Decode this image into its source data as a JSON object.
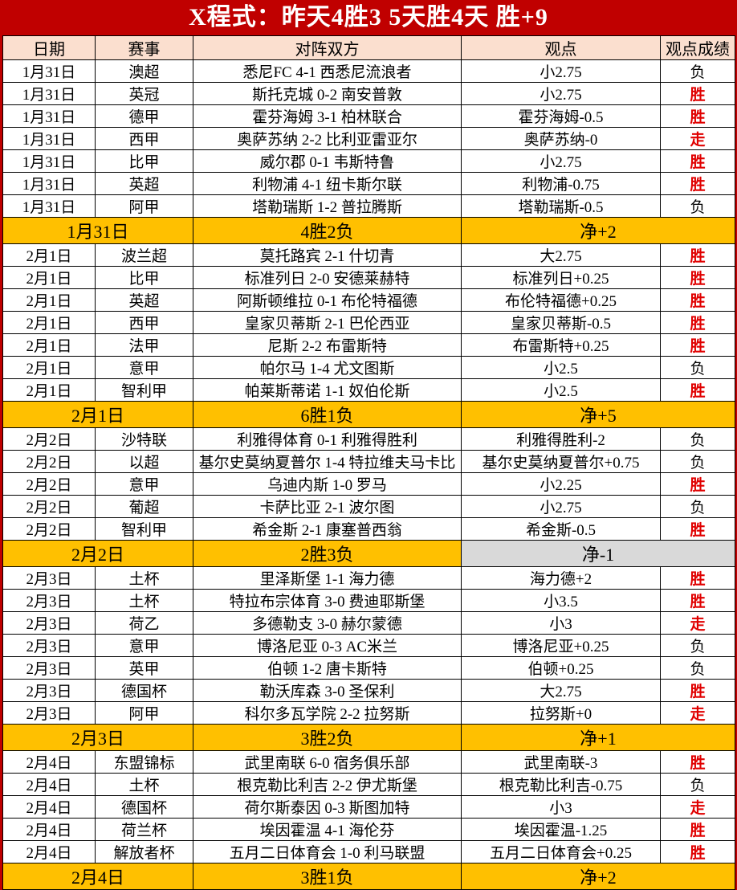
{
  "title": "X程式：昨天4胜3 5天胜4天 胜+9",
  "table": {
    "columns": [
      "日期",
      "赛事",
      "对阵双方",
      "观点",
      "观点成绩"
    ],
    "groups": [
      {
        "rows": [
          {
            "date": "1月31日",
            "league": "澳超",
            "match": "悉尼FC 4-1 西悉尼流浪者",
            "view": "小2.75",
            "result": "负",
            "result_type": "lose"
          },
          {
            "date": "1月31日",
            "league": "英冠",
            "match": "斯托克城 0-2 南安普敦",
            "view": "小2.75",
            "result": "胜",
            "result_type": "win"
          },
          {
            "date": "1月31日",
            "league": "德甲",
            "match": "霍芬海姆 3-1 柏林联合",
            "view": "霍芬海姆-0.5",
            "result": "胜",
            "result_type": "win"
          },
          {
            "date": "1月31日",
            "league": "西甲",
            "match": "奥萨苏纳 2-2 比利亚雷亚尔",
            "view": "奥萨苏纳-0",
            "result": "走",
            "result_type": "push"
          },
          {
            "date": "1月31日",
            "league": "比甲",
            "match": "威尔郡 0-1 韦斯特鲁",
            "view": "小2.75",
            "result": "胜",
            "result_type": "win"
          },
          {
            "date": "1月31日",
            "league": "英超",
            "match": "利物浦 4-1 纽卡斯尔联",
            "view": "利物浦-0.75",
            "result": "胜",
            "result_type": "win"
          },
          {
            "date": "1月31日",
            "league": "阿甲",
            "match": "塔勒瑞斯 1-2 普拉腾斯",
            "view": "塔勒瑞斯-0.5",
            "result": "负",
            "result_type": "lose"
          }
        ],
        "summary": {
          "date": "1月31日",
          "record": "4胜2负",
          "net": "净+2",
          "net_negative": false
        }
      },
      {
        "rows": [
          {
            "date": "2月1日",
            "league": "波兰超",
            "match": "莫托路宾 2-1 什切青",
            "view": "大2.75",
            "result": "胜",
            "result_type": "win"
          },
          {
            "date": "2月1日",
            "league": "比甲",
            "match": "标准列日 2-0 安德莱赫特",
            "view": "标准列日+0.25",
            "result": "胜",
            "result_type": "win"
          },
          {
            "date": "2月1日",
            "league": "英超",
            "match": "阿斯顿维拉 0-1 布伦特福德",
            "view": "布伦特福德+0.25",
            "result": "胜",
            "result_type": "win"
          },
          {
            "date": "2月1日",
            "league": "西甲",
            "match": "皇家贝蒂斯 2-1 巴伦西亚",
            "view": "皇家贝蒂斯-0.5",
            "result": "胜",
            "result_type": "win"
          },
          {
            "date": "2月1日",
            "league": "法甲",
            "match": "尼斯 2-2 布雷斯特",
            "view": "布雷斯特+0.25",
            "result": "胜",
            "result_type": "win"
          },
          {
            "date": "2月1日",
            "league": "意甲",
            "match": "帕尔马 1-4 尤文图斯",
            "view": "小2.5",
            "result": "负",
            "result_type": "lose"
          },
          {
            "date": "2月1日",
            "league": "智利甲",
            "match": "帕莱斯蒂诺 1-1 奴伯伦斯",
            "view": "小2.5",
            "result": "胜",
            "result_type": "win"
          }
        ],
        "summary": {
          "date": "2月1日",
          "record": "6胜1负",
          "net": "净+5",
          "net_negative": false
        }
      },
      {
        "rows": [
          {
            "date": "2月2日",
            "league": "沙特联",
            "match": "利雅得体育 0-1 利雅得胜利",
            "view": "利雅得胜利-2",
            "result": "负",
            "result_type": "lose"
          },
          {
            "date": "2月2日",
            "league": "以超",
            "match": "基尔史莫纳夏普尔 1-4 特拉维夫马卡比",
            "view": "基尔史莫纳夏普尔+0.75",
            "result": "负",
            "result_type": "lose"
          },
          {
            "date": "2月2日",
            "league": "意甲",
            "match": "乌迪内斯 1-0 罗马",
            "view": "小2.25",
            "result": "胜",
            "result_type": "win"
          },
          {
            "date": "2月2日",
            "league": "葡超",
            "match": "卡萨比亚 2-1 波尔图",
            "view": "小2.75",
            "result": "负",
            "result_type": "lose"
          },
          {
            "date": "2月2日",
            "league": "智利甲",
            "match": "希金斯 2-1 康塞普西翁",
            "view": "希金斯-0.5",
            "result": "胜",
            "result_type": "win"
          }
        ],
        "summary": {
          "date": "2月2日",
          "record": "2胜3负",
          "net": "净-1",
          "net_negative": true
        }
      },
      {
        "rows": [
          {
            "date": "2月3日",
            "league": "土杯",
            "match": "里泽斯堡 1-1 海力德",
            "view": "海力德+2",
            "result": "胜",
            "result_type": "win"
          },
          {
            "date": "2月3日",
            "league": "土杯",
            "match": "特拉布宗体育 3-0 费迪耶斯堡",
            "view": "小3.5",
            "result": "胜",
            "result_type": "win"
          },
          {
            "date": "2月3日",
            "league": "荷乙",
            "match": "多德勒支 3-0 赫尔蒙德",
            "view": "小3",
            "result": "走",
            "result_type": "push"
          },
          {
            "date": "2月3日",
            "league": "意甲",
            "match": "博洛尼亚 0-3 AC米兰",
            "view": "博洛尼亚+0.25",
            "result": "负",
            "result_type": "lose"
          },
          {
            "date": "2月3日",
            "league": "英甲",
            "match": "伯顿 1-2 唐卡斯特",
            "view": "伯顿+0.25",
            "result": "负",
            "result_type": "lose"
          },
          {
            "date": "2月3日",
            "league": "德国杯",
            "match": "勒沃库森 3-0 圣保利",
            "view": "大2.75",
            "result": "胜",
            "result_type": "win"
          },
          {
            "date": "2月3日",
            "league": "阿甲",
            "match": "科尔多瓦学院 2-2 拉努斯",
            "view": "拉努斯+0",
            "result": "走",
            "result_type": "push"
          }
        ],
        "summary": {
          "date": "2月3日",
          "record": "3胜2负",
          "net": "净+1",
          "net_negative": false
        }
      },
      {
        "rows": [
          {
            "date": "2月4日",
            "league": "东盟锦标",
            "match": "武里南联 6-0 宿务俱乐部",
            "view": "武里南联-3",
            "result": "胜",
            "result_type": "win"
          },
          {
            "date": "2月4日",
            "league": "土杯",
            "match": "根克勒比利吉 2-2 伊尤斯堡",
            "view": "根克勒比利吉-0.75",
            "result": "负",
            "result_type": "lose"
          },
          {
            "date": "2月4日",
            "league": "德国杯",
            "match": "荷尔斯泰因 0-3 斯图加特",
            "view": "小3",
            "result": "走",
            "result_type": "push"
          },
          {
            "date": "2月4日",
            "league": "荷兰杯",
            "match": "埃因霍温 4-1 海伦芬",
            "view": "埃因霍温-1.25",
            "result": "胜",
            "result_type": "win"
          },
          {
            "date": "2月4日",
            "league": "解放者杯",
            "match": "五月二日体育会 1-0 利马联盟",
            "view": "五月二日体育会+0.25",
            "result": "胜",
            "result_type": "win"
          }
        ],
        "summary": {
          "date": "2月4日",
          "record": "3胜1负",
          "net": "净+2",
          "net_negative": false
        }
      }
    ]
  },
  "colors": {
    "accent_red": "#c00000",
    "header_pink": "#fbdfcf",
    "win_pink": "#fbe3d7",
    "lose_gray": "#d9d9d9",
    "summary_gold": "#ffc000",
    "win_text_red": "#e00000",
    "title_text": "#ffffff"
  }
}
